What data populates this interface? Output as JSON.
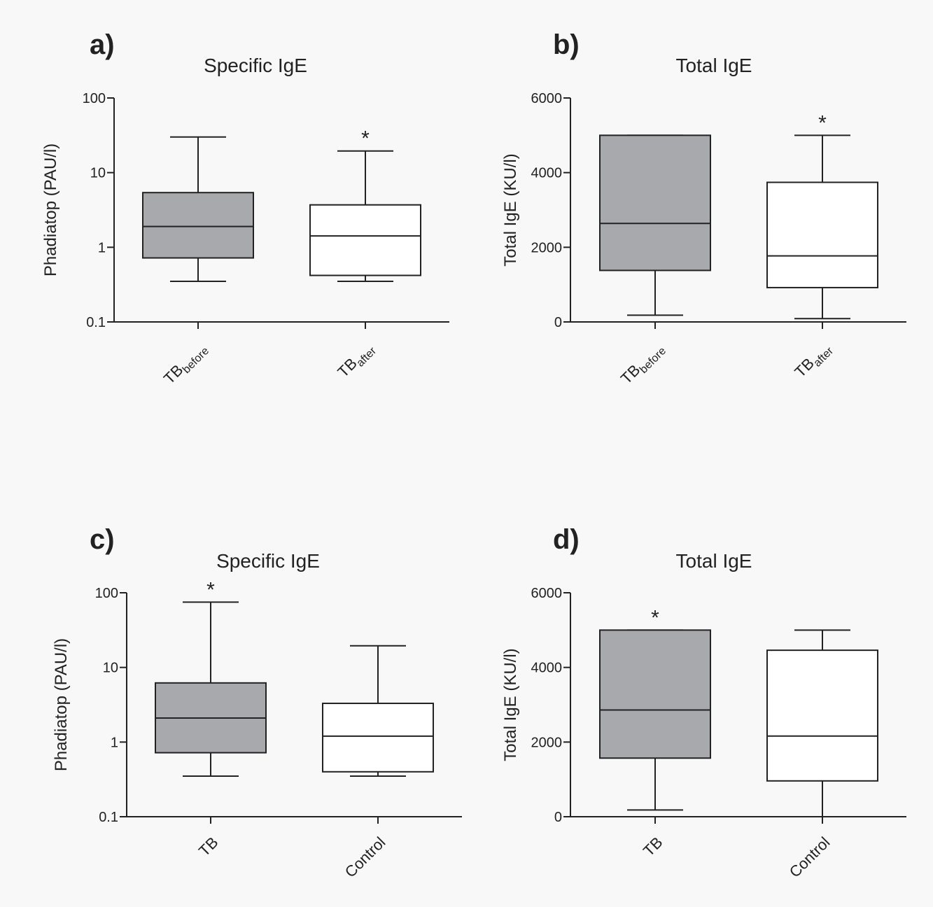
{
  "chart_data": [
    {
      "type": "box",
      "panel_letter": "a)",
      "title": "Specific IgE",
      "ylabel": "Phadiatop (PAU/l)",
      "yscale": "log",
      "ylim": [
        0.1,
        100
      ],
      "yticks": [
        0.1,
        1,
        10,
        100
      ],
      "ytick_labels": [
        "0.1",
        "1",
        "10",
        "100"
      ],
      "categories": [
        {
          "base": "TB",
          "sub": "before"
        },
        {
          "base": "TB",
          "sub": "after"
        }
      ],
      "boxes": [
        {
          "min": 0.35,
          "q1": 0.72,
          "median": 1.9,
          "q3": 5.4,
          "max": 30,
          "fill": "#a8a9ad",
          "marker": ""
        },
        {
          "min": 0.35,
          "q1": 0.42,
          "median": 1.42,
          "q3": 3.7,
          "max": 19.5,
          "fill": "#ffffff",
          "marker": "*"
        }
      ]
    },
    {
      "type": "box",
      "panel_letter": "b)",
      "title": "Total IgE",
      "ylabel": "Total IgE (KU/l)",
      "yscale": "linear",
      "ylim": [
        0,
        6000
      ],
      "yticks": [
        0,
        2000,
        4000,
        6000
      ],
      "ytick_labels": [
        "0",
        "2000",
        "4000",
        "6000"
      ],
      "categories": [
        {
          "base": "TB",
          "sub": "before"
        },
        {
          "base": "TB",
          "sub": "after"
        }
      ],
      "boxes": [
        {
          "min": 180,
          "q1": 1380,
          "median": 2640,
          "q3": 5000,
          "max": 5000,
          "fill": "#a8a9ad",
          "marker": ""
        },
        {
          "min": 90,
          "q1": 920,
          "median": 1770,
          "q3": 3740,
          "max": 5000,
          "fill": "#ffffff",
          "marker": "*"
        }
      ]
    },
    {
      "type": "box",
      "panel_letter": "c)",
      "title": "Specific IgE",
      "ylabel": "Phadiatop (PAU/l)",
      "yscale": "log",
      "ylim": [
        0.1,
        100
      ],
      "yticks": [
        0.1,
        1,
        10,
        100
      ],
      "ytick_labels": [
        "0.1",
        "1",
        "10",
        "100"
      ],
      "categories": [
        {
          "base": "TB",
          "sub": ""
        },
        {
          "base": "Control",
          "sub": ""
        }
      ],
      "boxes": [
        {
          "min": 0.35,
          "q1": 0.72,
          "median": 2.1,
          "q3": 6.2,
          "max": 75,
          "fill": "#a8a9ad",
          "marker": "*"
        },
        {
          "min": 0.35,
          "q1": 0.4,
          "median": 1.2,
          "q3": 3.3,
          "max": 19.5,
          "fill": "#ffffff",
          "marker": ""
        }
      ]
    },
    {
      "type": "box",
      "panel_letter": "d)",
      "title": "Total IgE",
      "ylabel": "Total IgE (KU/l)",
      "yscale": "linear",
      "ylim": [
        0,
        6000
      ],
      "yticks": [
        0,
        2000,
        4000,
        6000
      ],
      "ytick_labels": [
        "0",
        "2000",
        "4000",
        "6000"
      ],
      "categories": [
        {
          "base": "TB",
          "sub": ""
        },
        {
          "base": "Control",
          "sub": ""
        }
      ],
      "boxes": [
        {
          "min": 180,
          "q1": 1570,
          "median": 2860,
          "q3": 5000,
          "max": 5000,
          "fill": "#a8a9ad",
          "marker": "*"
        },
        {
          "min": 0,
          "q1": 960,
          "median": 2160,
          "q3": 4460,
          "max": 5000,
          "fill": "#ffffff",
          "marker": ""
        }
      ]
    }
  ]
}
